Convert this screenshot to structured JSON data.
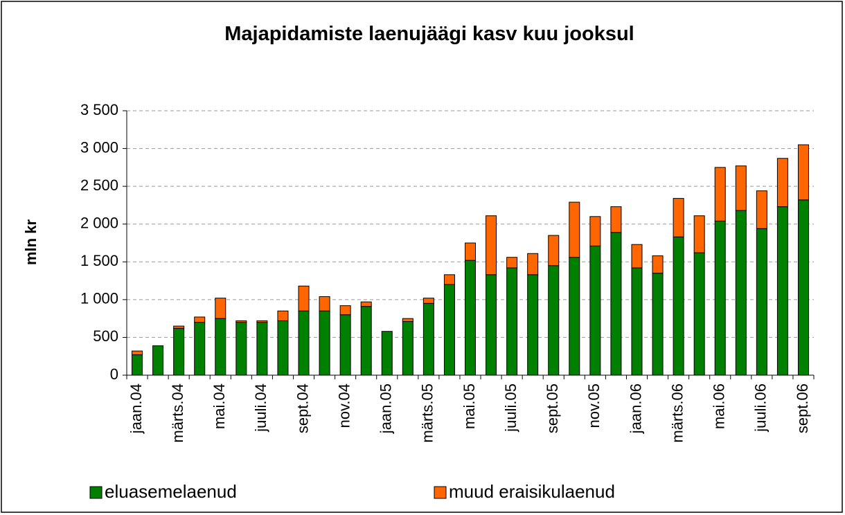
{
  "chart_data": {
    "type": "bar",
    "stacked": true,
    "title": "Majapidamiste laenujäägi kasv kuu jooksul",
    "y_label": "mln kr",
    "categories": [
      "jaan.04",
      null,
      "märts.04",
      null,
      "mai.04",
      null,
      "juuli.04",
      null,
      "sept.04",
      null,
      "nov.04",
      null,
      "jaan.05",
      null,
      "märts.05",
      null,
      "mai.05",
      null,
      "juuli.05",
      null,
      "sept.05",
      null,
      "nov.05",
      null,
      "jaan.06",
      null,
      "märts.06",
      null,
      "mai.06",
      null,
      "juuli.06",
      null,
      "sept.06"
    ],
    "series": [
      {
        "name": "eluasemelaenud",
        "color": "#008000",
        "values": [
          270,
          390,
          620,
          700,
          750,
          700,
          700,
          720,
          850,
          850,
          800,
          910,
          580,
          710,
          950,
          1200,
          1520,
          1330,
          1420,
          1330,
          1450,
          1560,
          1710,
          1890,
          1420,
          1350,
          1830,
          1620,
          2040,
          2180,
          1940,
          2230,
          2320
        ]
      },
      {
        "name": "muud eraisikulaenud",
        "color": "#ff6600",
        "values": [
          50,
          0,
          30,
          70,
          270,
          20,
          20,
          130,
          330,
          190,
          120,
          60,
          0,
          40,
          70,
          130,
          230,
          780,
          140,
          280,
          400,
          730,
          390,
          340,
          310,
          230,
          510,
          490,
          710,
          590,
          500,
          640,
          730
        ]
      }
    ],
    "ylim": [
      0,
      3500
    ],
    "yticks": [
      0,
      500,
      {
        "value": 1000,
        "label": "1 000"
      },
      {
        "value": 1500,
        "label": "1 500"
      },
      {
        "value": 2000,
        "label": "2 000"
      },
      {
        "value": 2500,
        "label": "2 500"
      },
      {
        "value": 3000,
        "label": "3 000"
      },
      {
        "value": 3500,
        "label": "3 500"
      }
    ],
    "grid": true,
    "legend": "bottom"
  }
}
